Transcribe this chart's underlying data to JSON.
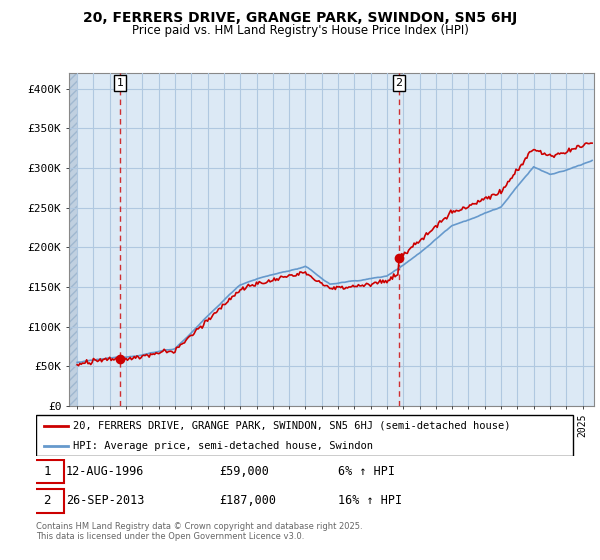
{
  "title_line1": "20, FERRERS DRIVE, GRANGE PARK, SWINDON, SN5 6HJ",
  "title_line2": "Price paid vs. HM Land Registry's House Price Index (HPI)",
  "ylim": [
    0,
    420000
  ],
  "yticks": [
    0,
    50000,
    100000,
    150000,
    200000,
    250000,
    300000,
    350000,
    400000
  ],
  "ytick_labels": [
    "£0",
    "£50K",
    "£100K",
    "£150K",
    "£200K",
    "£250K",
    "£300K",
    "£350K",
    "£400K"
  ],
  "bg_color": "#dce9f5",
  "grid_color": "#b0c8e0",
  "hatch_color": "#c8d8e8",
  "line1_color": "#cc0000",
  "line2_color": "#6699cc",
  "purchase1_x": 1996.62,
  "purchase1_y": 59000,
  "purchase2_x": 2013.74,
  "purchase2_y": 187000,
  "legend_label1": "20, FERRERS DRIVE, GRANGE PARK, SWINDON, SN5 6HJ (semi-detached house)",
  "legend_label2": "HPI: Average price, semi-detached house, Swindon",
  "note1_date": "12-AUG-1996",
  "note1_price": "£59,000",
  "note1_hpi": "6% ↑ HPI",
  "note2_date": "26-SEP-2013",
  "note2_price": "£187,000",
  "note2_hpi": "16% ↑ HPI",
  "footer": "Contains HM Land Registry data © Crown copyright and database right 2025.\nThis data is licensed under the Open Government Licence v3.0.",
  "xmin": 1993.5,
  "xmax": 2025.7
}
